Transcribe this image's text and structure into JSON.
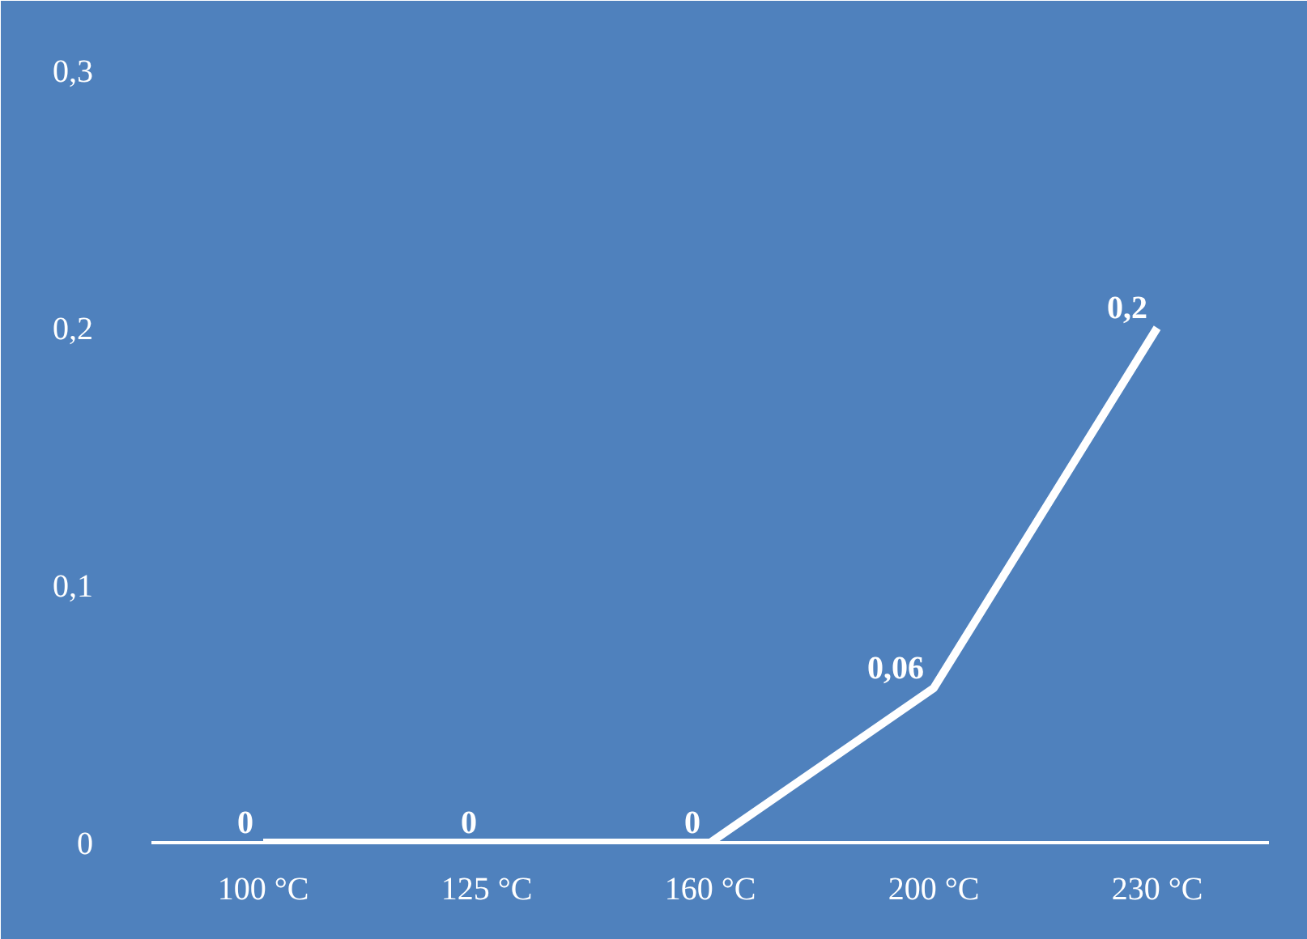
{
  "chart_data": {
    "type": "line",
    "categories": [
      "100 °C",
      "125 °C",
      "160 °C",
      "200 °C",
      "230 °C"
    ],
    "series": [
      {
        "color": "#ffffff",
        "values": [
          0,
          0,
          0,
          0.06,
          0.2
        ],
        "value_labels": [
          "0",
          "0",
          "0",
          "0,06",
          "0,2"
        ]
      }
    ],
    "ylim": [
      0,
      0.3
    ],
    "yticks": [
      0,
      {
        "value": 0.1,
        "label": "0,1"
      },
      {
        "value": 0.2,
        "label": "0,2"
      },
      {
        "value": 0.3,
        "label": "0,3"
      }
    ],
    "grid": false,
    "marker": "none",
    "line_style": "solid"
  }
}
